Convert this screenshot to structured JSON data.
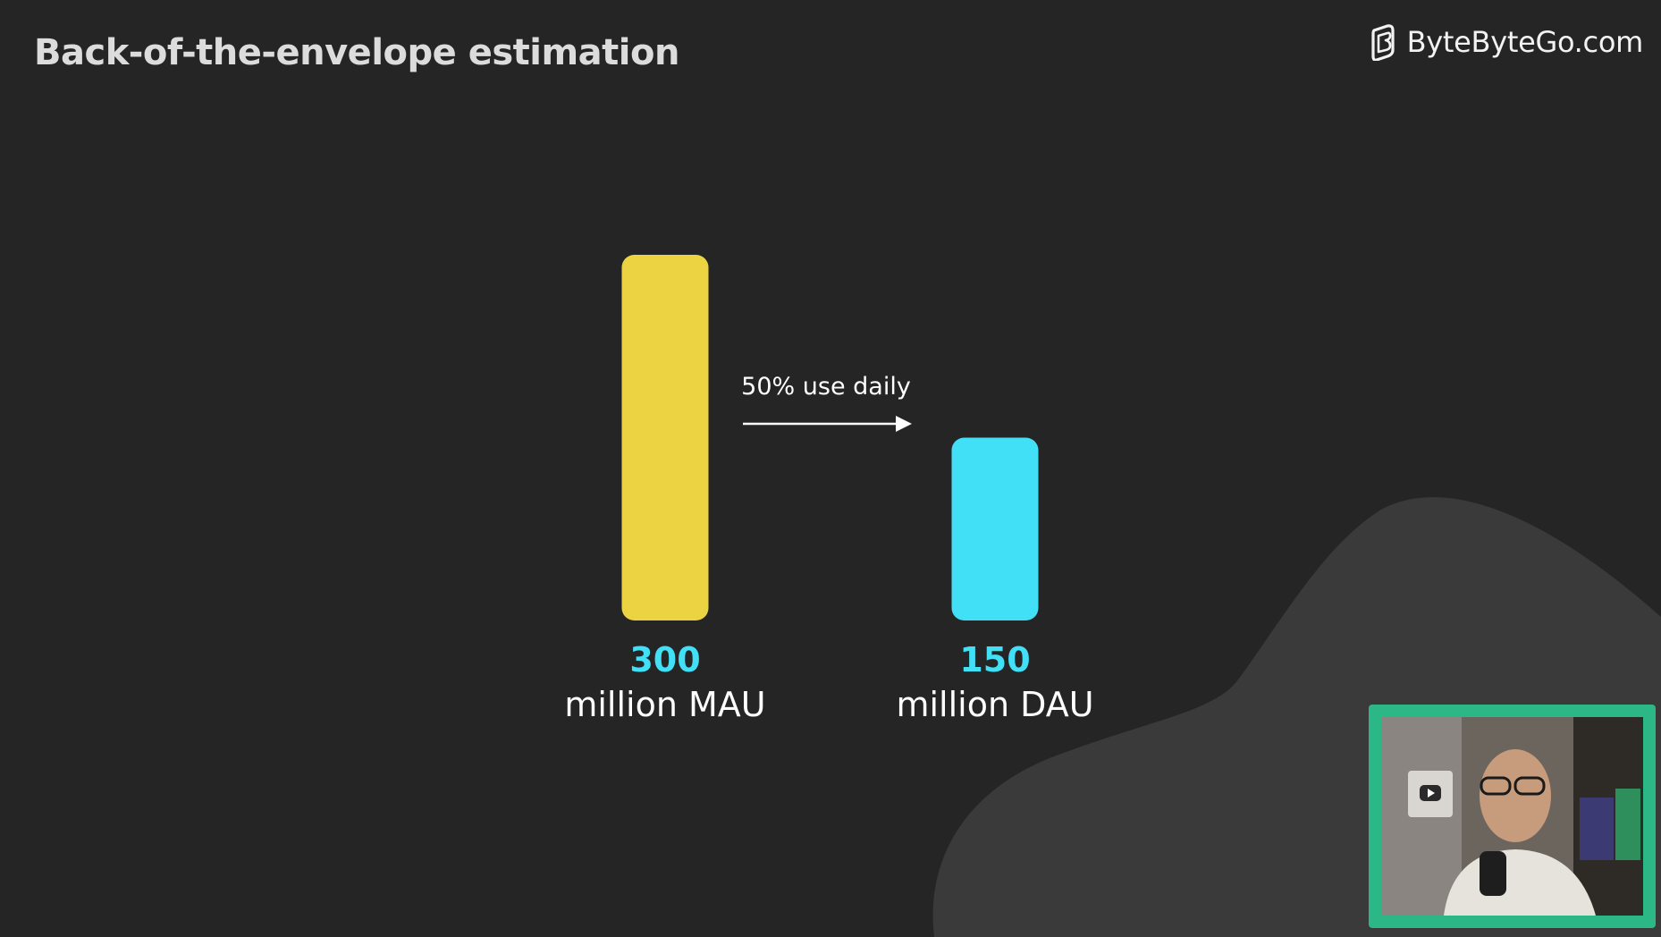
{
  "header": {
    "title": "Back-of-the-envelope estimation",
    "logo_text": "ByteByteGo.com"
  },
  "chart_data": {
    "type": "bar",
    "categories": [
      "million MAU",
      "million DAU"
    ],
    "values": [
      300,
      150
    ],
    "value_labels": [
      "300",
      "150"
    ],
    "colors": [
      "#ecd342",
      "#42e0f7"
    ],
    "value_label_color": "#42e0f7",
    "ylim": [
      0,
      300
    ],
    "grid": false,
    "annotation": {
      "text": "50% use daily",
      "from_category": "million MAU",
      "to_category": "million DAU"
    }
  },
  "colors": {
    "background": "#252525",
    "blob": "#393a39",
    "webcam_border": "#2bb886"
  }
}
